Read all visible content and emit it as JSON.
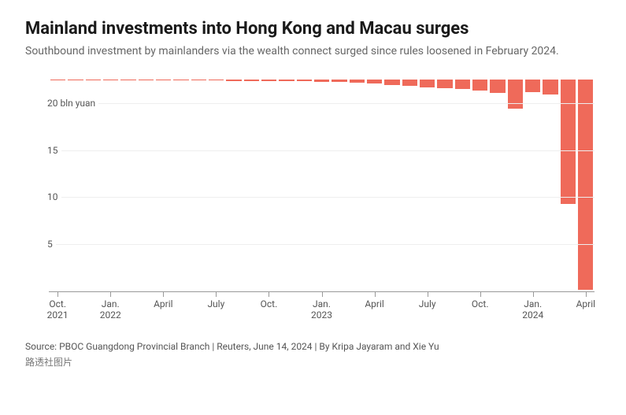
{
  "title": "Mainland investments into Hong Kong and Macau surges",
  "title_fontsize": 22,
  "subtitle": "Southbound investment by mainlanders via the wealth connect surged since rules loosened in February 2024.",
  "subtitle_fontsize": 14,
  "chart": {
    "type": "bar",
    "bar_color": "#ef6a5a",
    "background_color": "#ffffff",
    "grid_color": "#eeeeee",
    "axis_color": "#999999",
    "text_color": "#555555",
    "ymax": 22.5,
    "ymin": 0,
    "yticks": [
      {
        "value": 5,
        "label": "5"
      },
      {
        "value": 10,
        "label": "10"
      },
      {
        "value": 15,
        "label": "15"
      },
      {
        "value": 20,
        "label": "20 bln yuan"
      }
    ],
    "categories": [
      "2021-10",
      "2021-11",
      "2021-12",
      "2022-01",
      "2022-02",
      "2022-03",
      "2022-04",
      "2022-05",
      "2022-06",
      "2022-07",
      "2022-08",
      "2022-09",
      "2022-10",
      "2022-11",
      "2022-12",
      "2023-01",
      "2023-02",
      "2023-03",
      "2023-04",
      "2023-05",
      "2023-06",
      "2023-07",
      "2023-08",
      "2023-09",
      "2023-10",
      "2023-11",
      "2023-12",
      "2024-01",
      "2024-02",
      "2024-03",
      "2024-04"
    ],
    "values": [
      0.02,
      0.03,
      0.04,
      0.05,
      0.06,
      0.07,
      0.08,
      0.08,
      0.1,
      0.12,
      0.13,
      0.14,
      0.15,
      0.16,
      0.18,
      0.22,
      0.25,
      0.3,
      0.4,
      0.55,
      0.7,
      0.8,
      0.9,
      1.0,
      1.2,
      1.4,
      3.1,
      1.3,
      1.6,
      13.2,
      22.3
    ],
    "xticks": [
      {
        "index": 0,
        "label": "Oct.\n2021"
      },
      {
        "index": 3,
        "label": "Jan.\n2022"
      },
      {
        "index": 6,
        "label": "April"
      },
      {
        "index": 9,
        "label": "July"
      },
      {
        "index": 12,
        "label": "Oct."
      },
      {
        "index": 15,
        "label": "Jan.\n2023"
      },
      {
        "index": 18,
        "label": "April"
      },
      {
        "index": 21,
        "label": "July"
      },
      {
        "index": 24,
        "label": "Oct."
      },
      {
        "index": 27,
        "label": "Jan.\n2024"
      },
      {
        "index": 30,
        "label": "April"
      }
    ]
  },
  "source": "Source: PBOC Guangdong Provincial Branch | Reuters, June 14, 2024 | By Kripa Jayaram and Xie Yu",
  "caption": "路透社图片"
}
